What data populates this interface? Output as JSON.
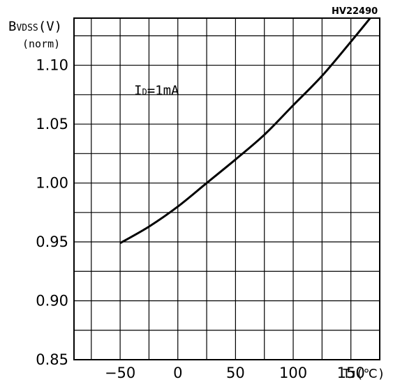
{
  "chart_data": {
    "type": "line",
    "part_number": "HV22490",
    "title": "",
    "ylabel": {
      "main": "B",
      "sub": "VDSS",
      "unit": "(V)",
      "line2": "(norm)"
    },
    "xlabel": {
      "main": "T",
      "sub": "J",
      "unit": "(℃)"
    },
    "annotation": {
      "main": "I",
      "sub": "D",
      "rest": "=1mA"
    },
    "xlim": [
      -90,
      175
    ],
    "ylim": [
      0.85,
      1.14
    ],
    "x_ticks": [
      -50,
      0,
      50,
      100,
      150
    ],
    "x_tick_labels": [
      "−50",
      "0",
      "50",
      "100",
      "150"
    ],
    "y_ticks": [
      0.85,
      0.9,
      0.95,
      1.0,
      1.05,
      1.1
    ],
    "y_tick_labels": [
      "0.85",
      "0.90",
      "0.95",
      "1.00",
      "1.05",
      "1.10"
    ],
    "x_grid": [
      -75,
      -50,
      -25,
      0,
      25,
      50,
      75,
      100,
      125,
      150
    ],
    "y_grid": [
      0.875,
      0.9,
      0.925,
      0.95,
      0.975,
      1.0,
      1.025,
      1.05,
      1.075,
      1.1,
      1.125
    ],
    "grid": true,
    "series": [
      {
        "color": "#000000",
        "x": [
          -50,
          -25,
          0,
          25,
          50,
          75,
          100,
          125,
          150,
          175
        ],
        "y": [
          0.949,
          0.963,
          0.98,
          1.0,
          1.02,
          1.041,
          1.066,
          1.091,
          1.12,
          1.15
        ]
      }
    ]
  }
}
